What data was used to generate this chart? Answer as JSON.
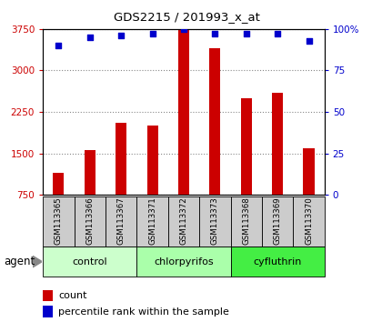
{
  "title": "GDS2215 / 201993_x_at",
  "samples": [
    "GSM113365",
    "GSM113366",
    "GSM113367",
    "GSM113371",
    "GSM113372",
    "GSM113373",
    "GSM113368",
    "GSM113369",
    "GSM113370"
  ],
  "counts": [
    1150,
    1560,
    2050,
    2000,
    3750,
    3400,
    2500,
    2600,
    1600
  ],
  "percentile_ranks": [
    90,
    95,
    96,
    97,
    100,
    97,
    97,
    97,
    93
  ],
  "groups": [
    {
      "label": "control",
      "indices": [
        0,
        1,
        2
      ],
      "color": "#ccffcc"
    },
    {
      "label": "chlorpyrifos",
      "indices": [
        3,
        4,
        5
      ],
      "color": "#aaffaa"
    },
    {
      "label": "cyfluthrin",
      "indices": [
        6,
        7,
        8
      ],
      "color": "#44ee44"
    }
  ],
  "ylim_left": [
    750,
    3750
  ],
  "ylim_right": [
    0,
    100
  ],
  "yticks_left": [
    750,
    1500,
    2250,
    3000,
    3750
  ],
  "yticks_right": [
    0,
    25,
    50,
    75,
    100
  ],
  "bar_color": "#cc0000",
  "dot_color": "#0000cc",
  "left_tick_color": "#cc0000",
  "right_tick_color": "#0000cc",
  "grid_color": "#888888",
  "bar_bg_color": "#cccccc",
  "agent_label": "agent",
  "legend_count_label": "count",
  "legend_pct_label": "percentile rank within the sample",
  "bar_width": 0.35
}
